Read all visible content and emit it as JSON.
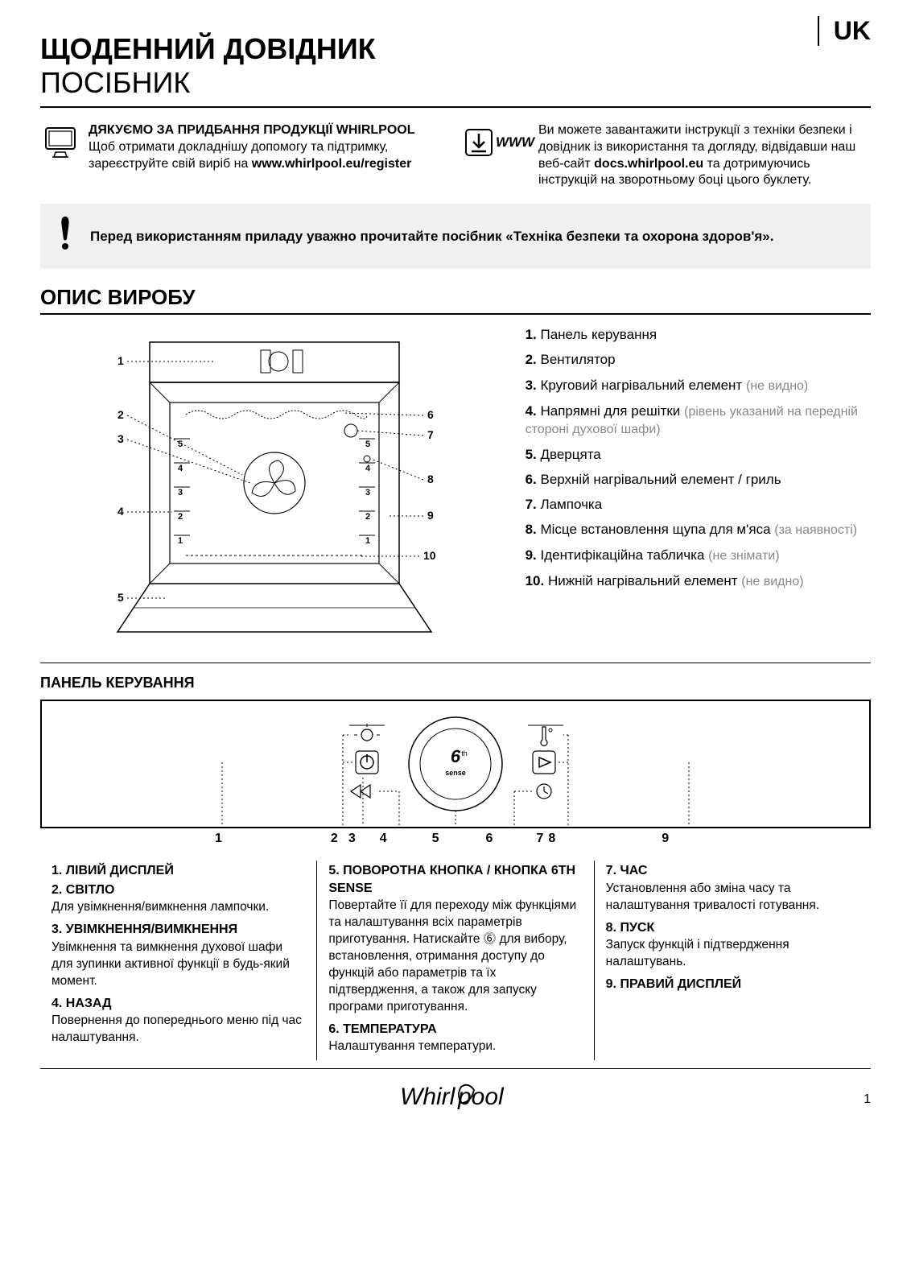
{
  "lang_tag": "UK",
  "title": "ЩОДЕННИЙ ДОВІДНИК",
  "subtitle": "ПОСІБНИК",
  "intro_left": {
    "heading": "ДЯКУЄМО ЗА ПРИДБАННЯ ПРОДУКЦІЇ WHIRLPOOL",
    "body": "Щоб отримати докладнішу допомогу та підтримку, зареєструйте свій виріб на ",
    "url": "www.whirlpool.eu/register"
  },
  "intro_right": {
    "www_label": "WWW",
    "body_pre": "Ви можете завантажити інструкції з техніки безпеки і довідник із використання та догляду, відвідавши наш веб-сайт ",
    "url": "docs.whirlpool.eu",
    "body_post": " та дотримуючись інструкцій на зворотньому боці цього буклету."
  },
  "warning": "Перед використанням приладу уважно прочитайте посібник «Техніка безпеки та охорона здоров'я».",
  "product_section_title": "ОПИС ВИРОБУ",
  "product_legend": [
    {
      "num": "1.",
      "text": "Панель керування"
    },
    {
      "num": "2.",
      "text": "Вентилятор"
    },
    {
      "num": "3.",
      "text": "Круговий нагрівальний елемент",
      "note": "(не видно)"
    },
    {
      "num": "4.",
      "text": "Напрямні для решітки",
      "note": "(рівень указаний на передній стороні духової шафи)"
    },
    {
      "num": "5.",
      "text": "Дверцята"
    },
    {
      "num": "6.",
      "text": "Верхній нагрівальний елемент / гриль"
    },
    {
      "num": "7.",
      "text": "Лампочка"
    },
    {
      "num": "8.",
      "text": "Місце встановлення щупа для м'яса",
      "note": "(за наявності)"
    },
    {
      "num": "9.",
      "text": "Ідентифікаційна табличка",
      "note": "(не знімати)"
    },
    {
      "num": "10.",
      "text": "Нижній нагрівальний елемент",
      "note": "(не видно)"
    }
  ],
  "diagram_callouts": {
    "left": [
      "1",
      "2",
      "3",
      "4",
      "5"
    ],
    "right": [
      "6",
      "7",
      "8",
      "9",
      "10"
    ],
    "rack_levels": [
      "5",
      "4",
      "3",
      "2",
      "1"
    ]
  },
  "panel_title": "ПАНЕЛЬ КЕРУВАННЯ",
  "panel_callouts": [
    "1",
    "2",
    "3",
    "4",
    "5",
    "6",
    "7",
    "8",
    "9"
  ],
  "panel_knob_label": "6ᵗʰ sense",
  "panel_desc": {
    "col1": [
      {
        "h": "1. ЛІВИЙ ДИСПЛЕЙ",
        "p": ""
      },
      {
        "h": "2. СВІТЛО",
        "p": "Для увімкнення/вимкнення лампочки."
      },
      {
        "h": "3. УВІМКНЕННЯ/ВИМКНЕННЯ",
        "p": "Увімкнення та вимкнення духової шафи для зупинки активної функції в будь-який момент."
      },
      {
        "h": "4. НАЗАД",
        "p": "Повернення до попереднього меню під час налаштування."
      }
    ],
    "col2": [
      {
        "h": "5. ПОВОРОТНА КНОПКА / КНОПКА 6TH SENSE",
        "p": "Повертайте її для переходу між функціями та налаштування всіх параметрів приготування. Натискайте ⓺ для вибору, встановлення, отримання доступу до функцій або параметрів та їх підтвердження, а також для запуску програми приготування."
      },
      {
        "h": "6. ТЕМПЕРАТУРА",
        "p": "Налаштування температури."
      }
    ],
    "col3": [
      {
        "h": "7. ЧАС",
        "p": "Установлення або зміна часу та налаштування тривалості готування."
      },
      {
        "h": "8. ПУСК",
        "p": "Запуск функцій і підтвердження налаштувань."
      },
      {
        "h": "9. ПРАВИЙ ДИСПЛЕЙ",
        "p": ""
      }
    ]
  },
  "logo": "Whirlpool",
  "page_number": "1"
}
